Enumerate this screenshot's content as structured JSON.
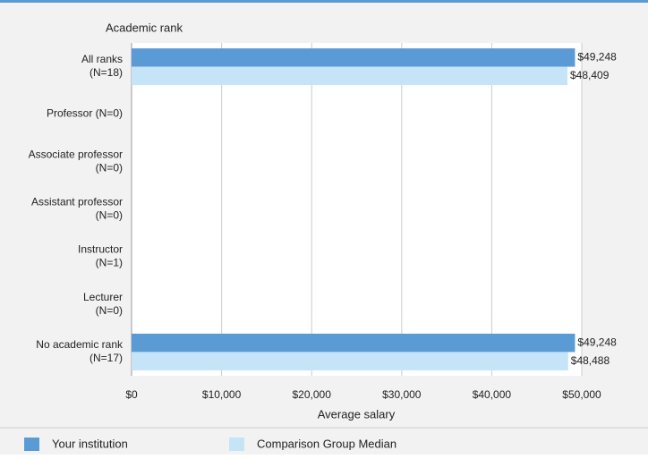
{
  "chart_data": {
    "type": "bar",
    "orientation": "horizontal",
    "y_axis_title": "Academic rank",
    "x_axis_title": "Average salary",
    "categories": [
      "All ranks\n(N=18)",
      "Professor (N=0)",
      "Associate professor\n(N=0)",
      "Assistant professor\n(N=0)",
      "Instructor\n(N=1)",
      "Lecturer\n(N=0)",
      "No academic rank\n(N=17)"
    ],
    "series": [
      {
        "name": "Your institution",
        "color": "#5b9bd5",
        "values": [
          49248,
          null,
          null,
          null,
          null,
          null,
          49248
        ],
        "value_labels": [
          "$49,248",
          null,
          null,
          null,
          null,
          null,
          "$49,248"
        ]
      },
      {
        "name": "Comparison Group Median",
        "color": "#c6e4f8",
        "values": [
          48409,
          null,
          null,
          null,
          null,
          null,
          48488
        ],
        "value_labels": [
          "$48,409",
          null,
          null,
          null,
          null,
          null,
          "$48,488"
        ]
      }
    ],
    "xlim": [
      0,
      50000
    ],
    "xticks": [
      {
        "value": 0,
        "label": "$0"
      },
      {
        "value": 10000,
        "label": "$10,000"
      },
      {
        "value": 20000,
        "label": "$20,000"
      },
      {
        "value": 30000,
        "label": "$30,000"
      },
      {
        "value": 40000,
        "label": "$40,000"
      },
      {
        "value": 50000,
        "label": "$50,000"
      }
    ],
    "grid": true,
    "legend": "bottom"
  }
}
